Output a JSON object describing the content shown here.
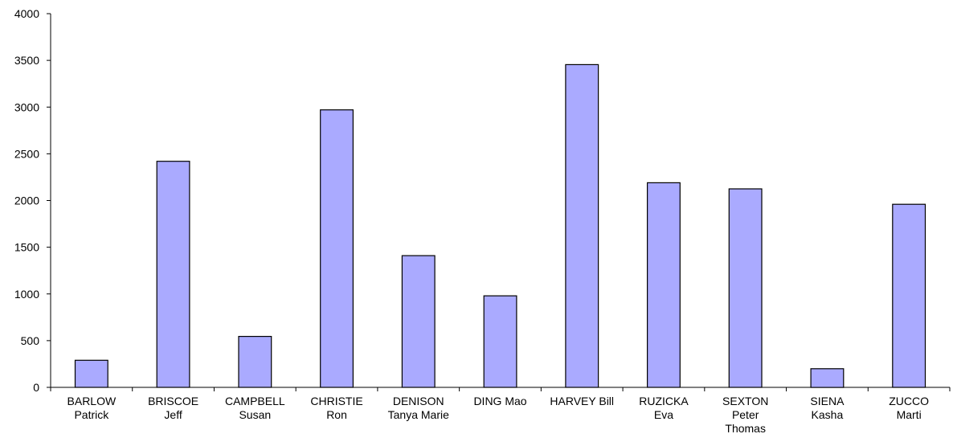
{
  "chart_data": {
    "type": "bar",
    "title": "",
    "xlabel": "",
    "ylabel": "",
    "categories": [
      [
        "BARLOW",
        "Patrick"
      ],
      [
        "BRISCOE",
        "Jeff"
      ],
      [
        "CAMPBELL",
        "Susan"
      ],
      [
        "CHRISTIE",
        "Ron"
      ],
      [
        "DENISON",
        "Tanya Marie"
      ],
      [
        "DING Mao"
      ],
      [
        "HARVEY Bill"
      ],
      [
        "RUZICKA",
        "Eva"
      ],
      [
        "SEXTON",
        "Peter",
        "Thomas"
      ],
      [
        "SIENA",
        "Kasha"
      ],
      [
        "ZUCCO",
        "Marti"
      ]
    ],
    "values": [
      290,
      2420,
      545,
      2970,
      1410,
      980,
      3455,
      2190,
      2125,
      200,
      1960
    ],
    "ylim": [
      0,
      4000
    ],
    "yticks": [
      "0",
      "500",
      "1000",
      "1500",
      "2000",
      "2500",
      "3000",
      "3500",
      "4000"
    ],
    "grid": false,
    "legend": "none",
    "colors": {
      "bar_fill": "#aaaaff",
      "bar_stroke": "#000000",
      "axis": "#000000"
    }
  }
}
